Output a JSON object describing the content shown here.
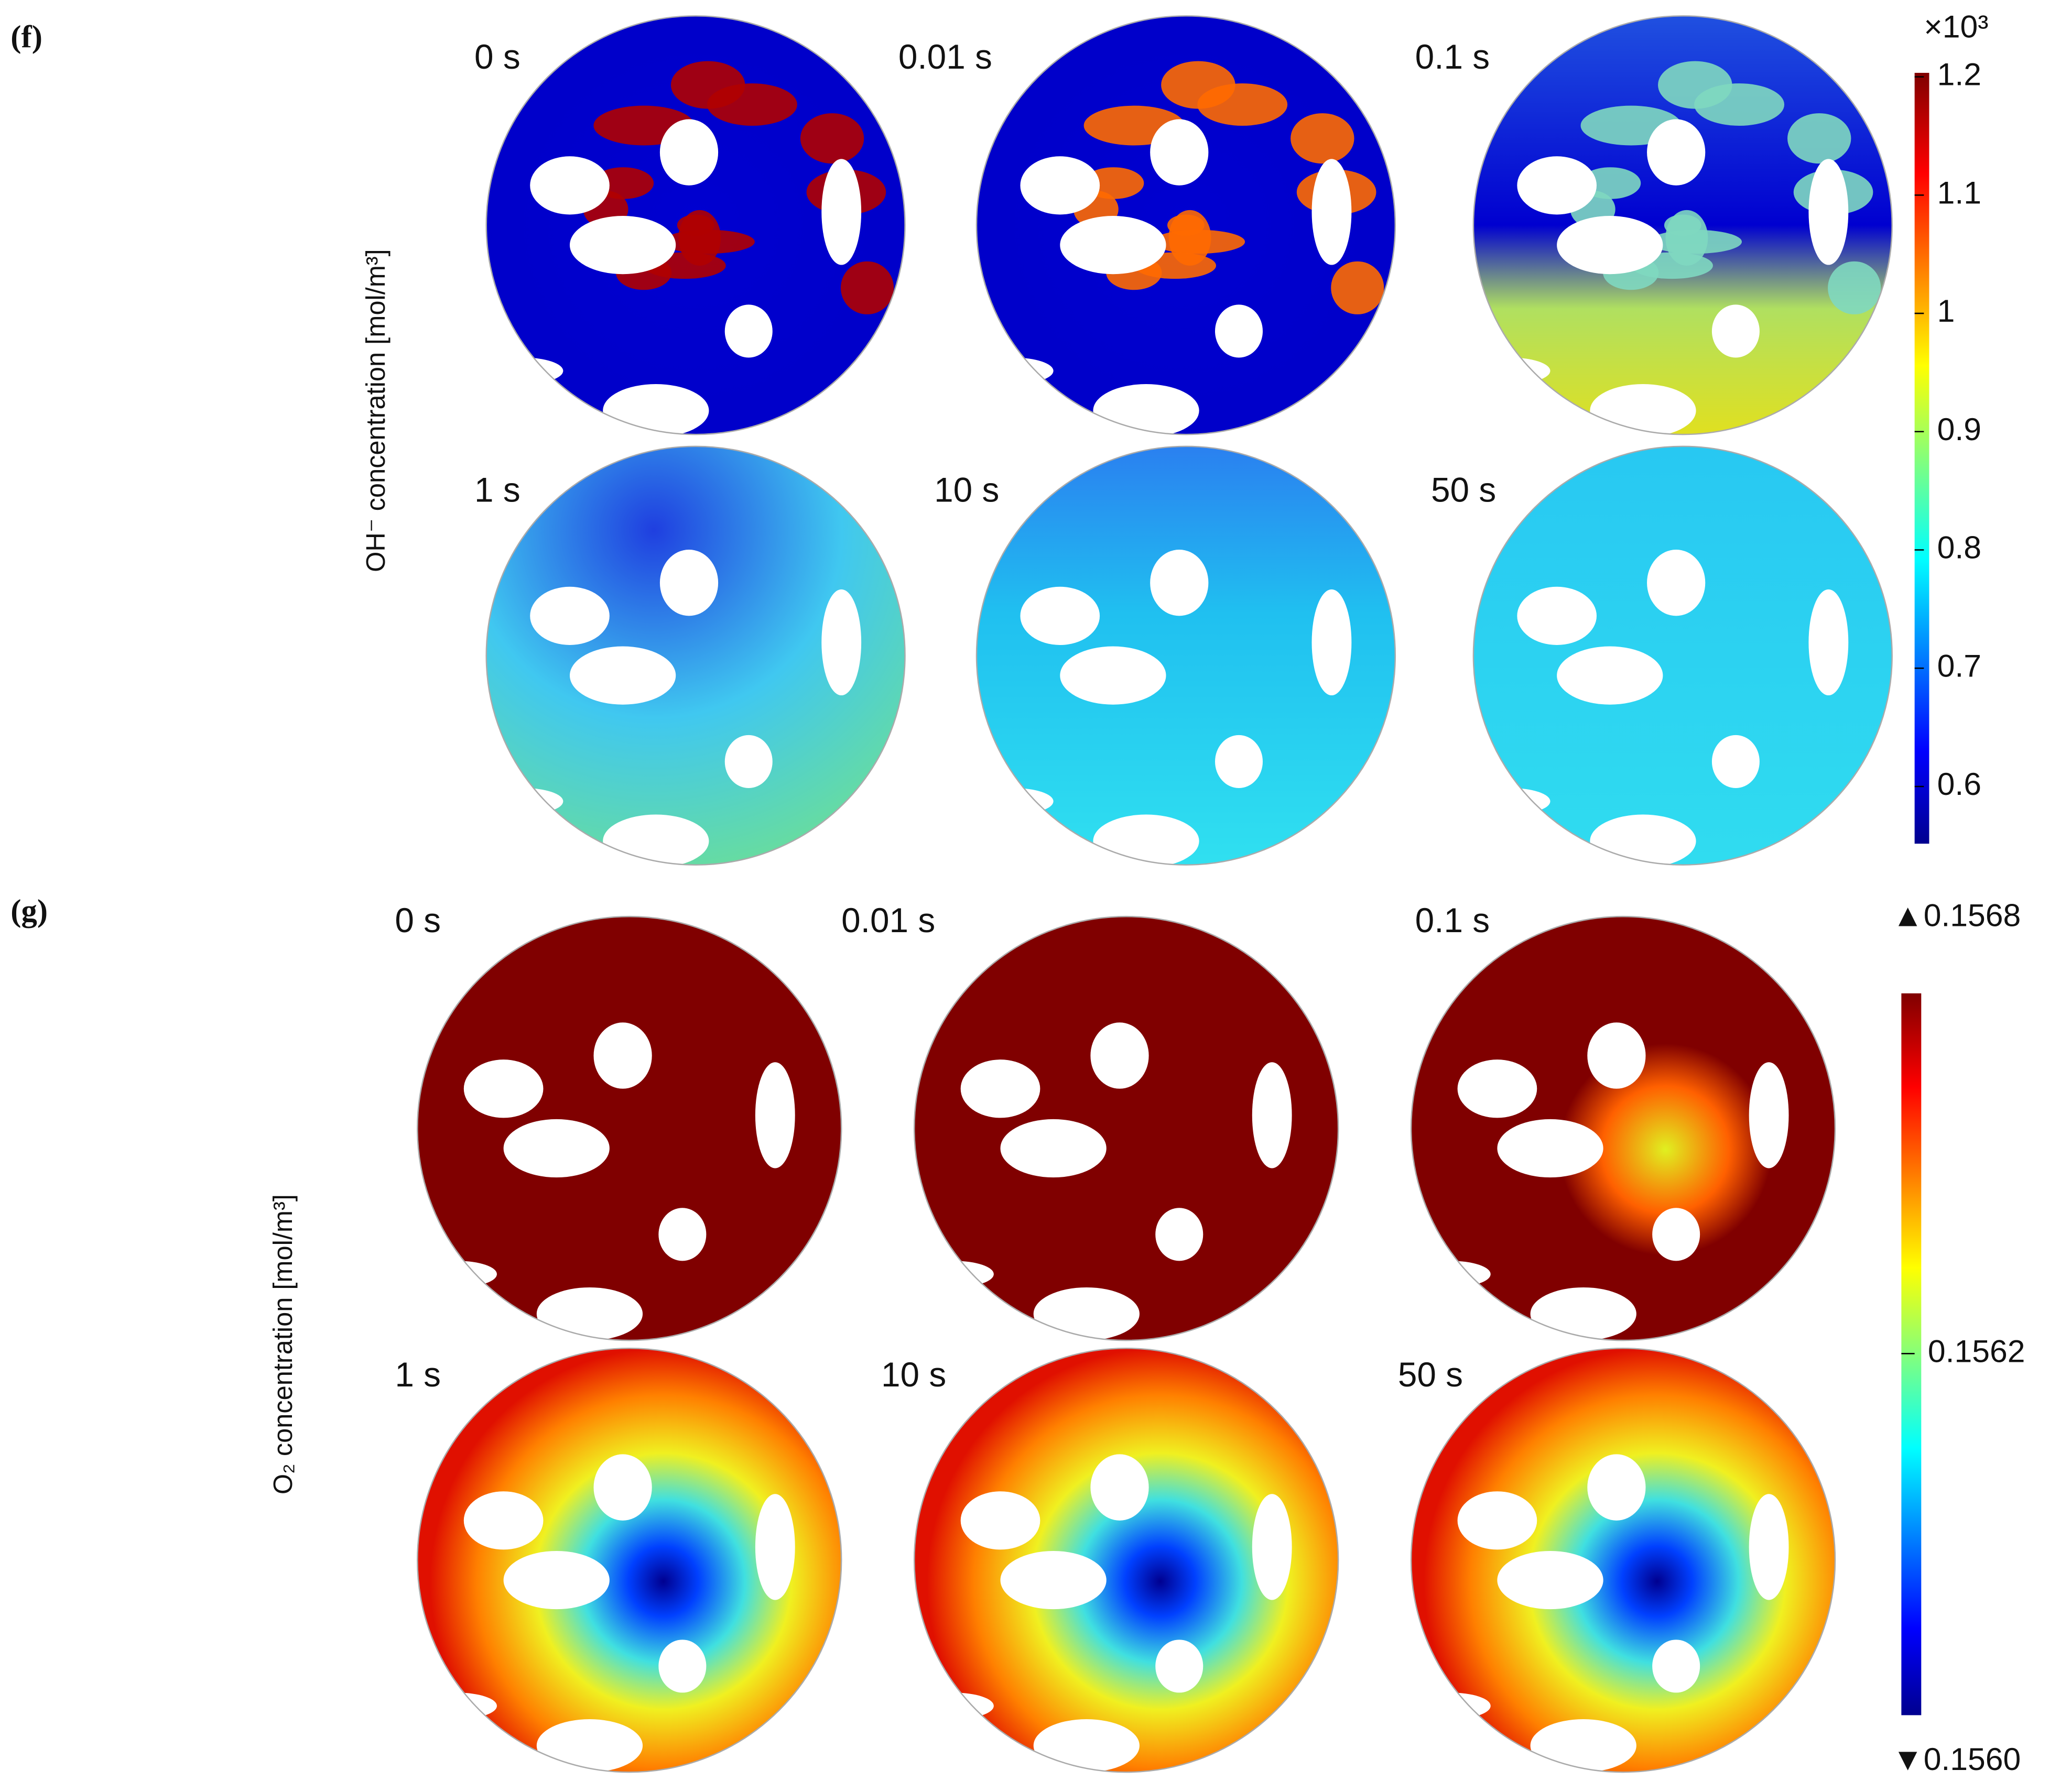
{
  "panels": [
    {
      "label": "(f)",
      "axis_label": "OH⁻ concentration [mol/m³]",
      "times": [
        "0 s",
        "0.01 s",
        "0.1 s",
        "1 s",
        "10 s",
        "50 s"
      ],
      "colorbar": {
        "multiplier": "×10³",
        "ticks": [
          "1.2",
          "1.1",
          "1",
          "0.9",
          "0.8",
          "0.7",
          "0.6"
        ]
      }
    },
    {
      "label": "(g)",
      "axis_label": "O₂ concentration [mol/m³]",
      "times": [
        "0 s",
        "0.01 s",
        "0.1 s",
        "1 s",
        "10 s",
        "50 s"
      ],
      "colorbar": {
        "max": "▲0.1568",
        "mid": "0.1562",
        "min": "▼0.1560"
      }
    }
  ]
}
